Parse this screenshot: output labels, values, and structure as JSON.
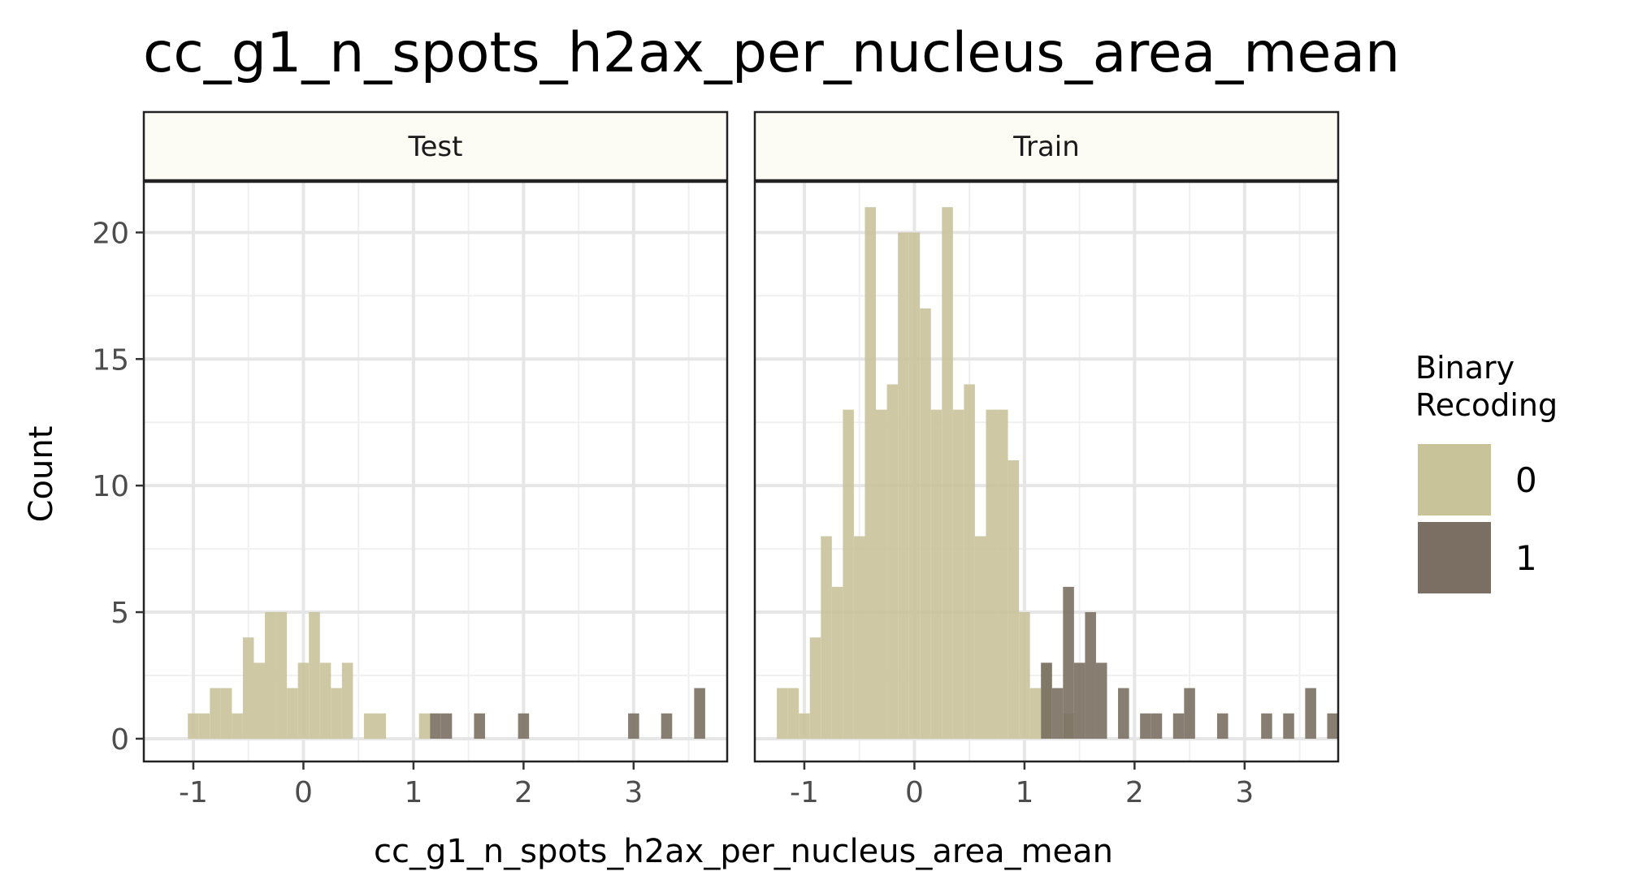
{
  "chart_data": {
    "type": "bar",
    "title": "cc_g1_n_spots_h2ax_per_nucleus_area_mean",
    "xlabel": "cc_g1_n_spots_h2ax_per_nucleus_area_mean",
    "ylabel": "Count",
    "xlim": [
      -1.45,
      3.85
    ],
    "ylim": [
      -0.9,
      22.0
    ],
    "x_ticks": [
      -1,
      0,
      1,
      2,
      3
    ],
    "x_tick_labels": [
      "-1",
      "0",
      "1",
      "2",
      "3"
    ],
    "y_ticks": [
      0,
      5,
      10,
      15,
      20
    ],
    "y_tick_labels": [
      "0",
      "5",
      "10",
      "15",
      "20"
    ],
    "grid": true,
    "bin_width": 0.1,
    "legend": {
      "title": "Binary\nRecoding",
      "position": "right",
      "entries": [
        {
          "label": "0",
          "color": "#c9c39a"
        },
        {
          "label": "1",
          "color": "#7a6f62"
        }
      ]
    },
    "panels": [
      {
        "name": "Test",
        "series": [
          {
            "name": "0",
            "color": "#c9c39a",
            "bins": [
              {
                "x": -1.0,
                "count": 1
              },
              {
                "x": -0.9,
                "count": 1
              },
              {
                "x": -0.8,
                "count": 2
              },
              {
                "x": -0.7,
                "count": 2
              },
              {
                "x": -0.6,
                "count": 1
              },
              {
                "x": -0.5,
                "count": 4
              },
              {
                "x": -0.4,
                "count": 3
              },
              {
                "x": -0.3,
                "count": 5
              },
              {
                "x": -0.2,
                "count": 5
              },
              {
                "x": -0.1,
                "count": 2
              },
              {
                "x": 0.0,
                "count": 3
              },
              {
                "x": 0.1,
                "count": 5
              },
              {
                "x": 0.2,
                "count": 3
              },
              {
                "x": 0.3,
                "count": 2
              },
              {
                "x": 0.4,
                "count": 3
              },
              {
                "x": 0.6,
                "count": 1
              },
              {
                "x": 0.7,
                "count": 1
              },
              {
                "x": 1.1,
                "count": 1
              }
            ]
          },
          {
            "name": "1",
            "color": "#7a6f62",
            "bins": [
              {
                "x": 1.2,
                "count": 1
              },
              {
                "x": 1.3,
                "count": 1
              },
              {
                "x": 1.6,
                "count": 1
              },
              {
                "x": 2.0,
                "count": 1
              },
              {
                "x": 3.0,
                "count": 1
              },
              {
                "x": 3.3,
                "count": 1
              },
              {
                "x": 3.6,
                "count": 2
              }
            ]
          }
        ]
      },
      {
        "name": "Train",
        "series": [
          {
            "name": "0",
            "color": "#c9c39a",
            "bins": [
              {
                "x": -1.2,
                "count": 2
              },
              {
                "x": -1.1,
                "count": 2
              },
              {
                "x": -1.0,
                "count": 1
              },
              {
                "x": -0.9,
                "count": 4
              },
              {
                "x": -0.8,
                "count": 8
              },
              {
                "x": -0.7,
                "count": 6
              },
              {
                "x": -0.6,
                "count": 13
              },
              {
                "x": -0.5,
                "count": 8
              },
              {
                "x": -0.4,
                "count": 21
              },
              {
                "x": -0.3,
                "count": 13
              },
              {
                "x": -0.2,
                "count": 14
              },
              {
                "x": -0.1,
                "count": 20
              },
              {
                "x": 0.0,
                "count": 20
              },
              {
                "x": 0.1,
                "count": 17
              },
              {
                "x": 0.2,
                "count": 13
              },
              {
                "x": 0.3,
                "count": 21
              },
              {
                "x": 0.4,
                "count": 13
              },
              {
                "x": 0.5,
                "count": 14
              },
              {
                "x": 0.6,
                "count": 8
              },
              {
                "x": 0.7,
                "count": 13
              },
              {
                "x": 0.8,
                "count": 13
              },
              {
                "x": 0.9,
                "count": 11
              },
              {
                "x": 1.0,
                "count": 5
              },
              {
                "x": 1.1,
                "count": 2
              },
              {
                "x": 1.2,
                "count": 3
              },
              {
                "x": 1.4,
                "count": 1
              }
            ]
          },
          {
            "name": "1",
            "color": "#7a6f62",
            "bins": [
              {
                "x": 1.2,
                "count": 3
              },
              {
                "x": 1.3,
                "count": 2
              },
              {
                "x": 1.4,
                "count": 6
              },
              {
                "x": 1.5,
                "count": 3
              },
              {
                "x": 1.6,
                "count": 5
              },
              {
                "x": 1.7,
                "count": 3
              },
              {
                "x": 1.9,
                "count": 2
              },
              {
                "x": 2.1,
                "count": 1
              },
              {
                "x": 2.2,
                "count": 1
              },
              {
                "x": 2.4,
                "count": 1
              },
              {
                "x": 2.5,
                "count": 2
              },
              {
                "x": 2.8,
                "count": 1
              },
              {
                "x": 3.2,
                "count": 1
              },
              {
                "x": 3.4,
                "count": 1
              },
              {
                "x": 3.6,
                "count": 2
              },
              {
                "x": 3.8,
                "count": 1
              }
            ]
          }
        ]
      }
    ]
  }
}
